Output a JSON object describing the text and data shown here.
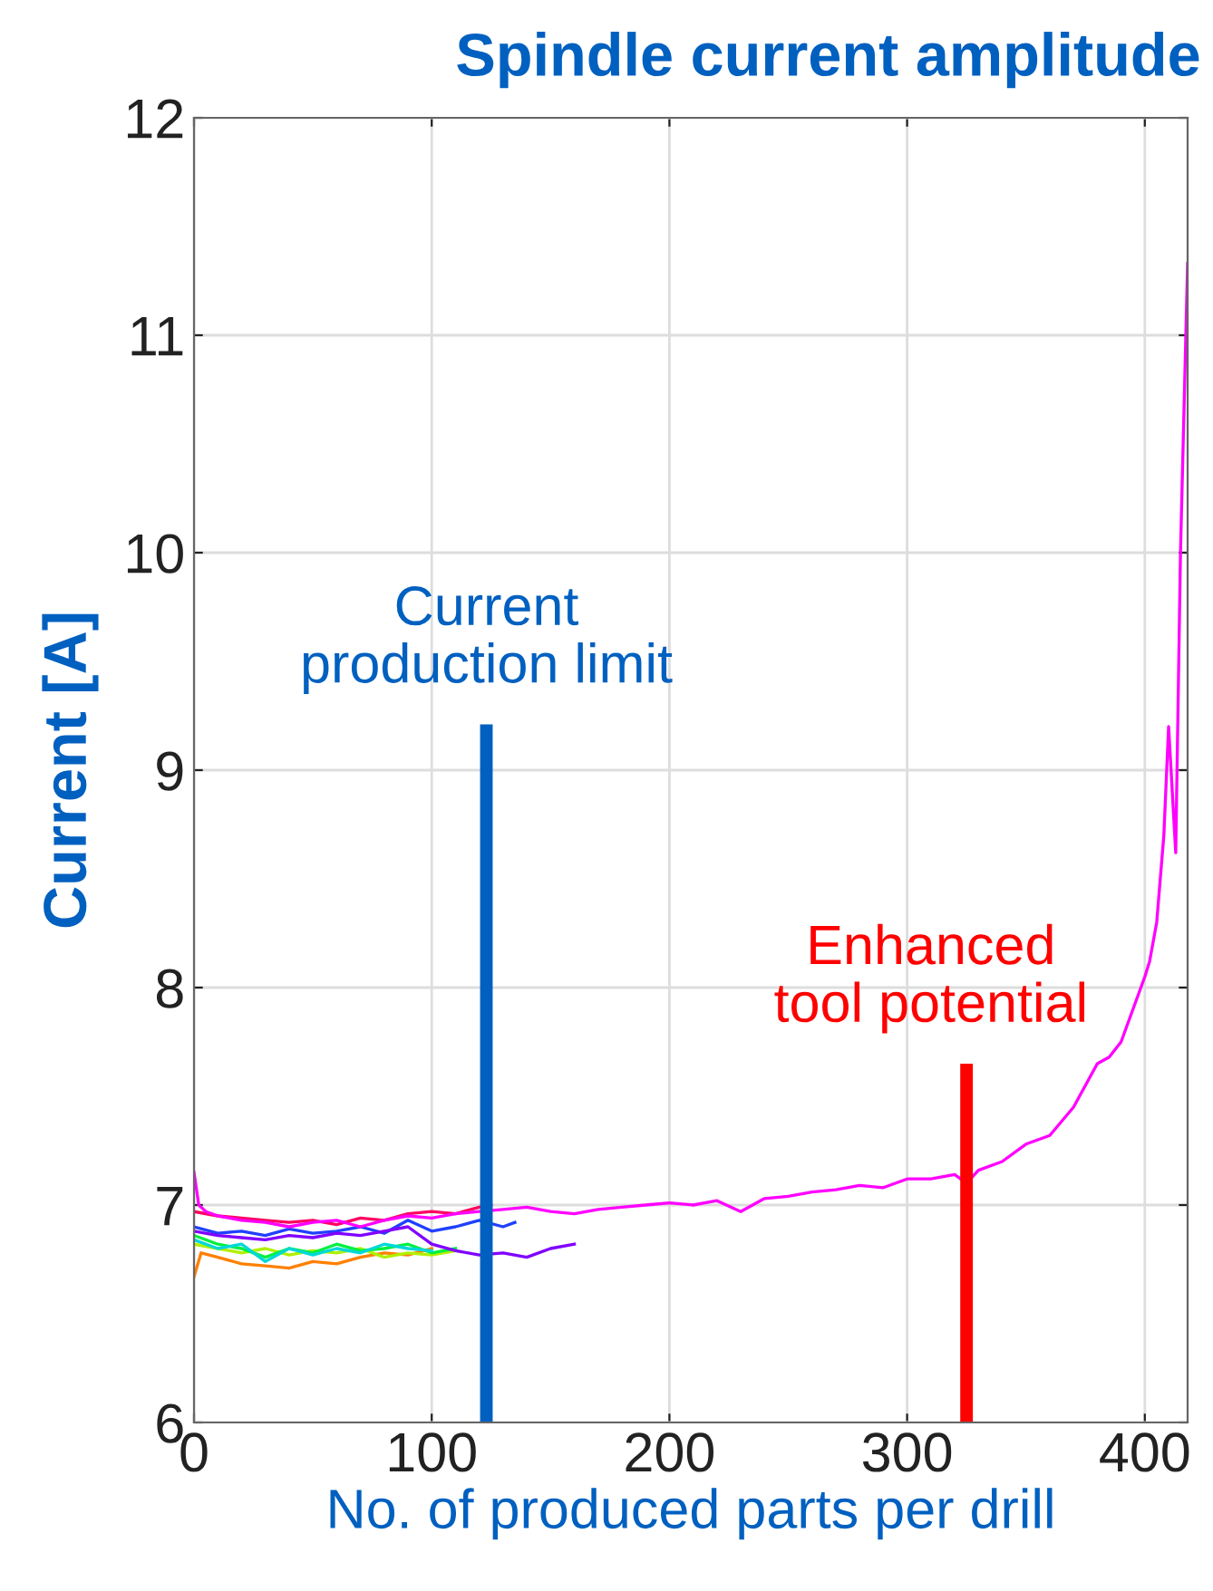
{
  "chart_data": {
    "type": "line",
    "title": "Spindle current amplitude",
    "xlabel": "No. of produced parts per drill",
    "ylabel": "Current [A]",
    "xlim": [
      0,
      418
    ],
    "ylim": [
      6,
      12
    ],
    "xticks": [
      0,
      100,
      200,
      300,
      400
    ],
    "yticks": [
      6,
      7,
      8,
      9,
      10,
      11,
      12
    ],
    "grid": true,
    "series": [
      {
        "color": "#ff8000",
        "x": [
          0,
          3,
          10,
          20,
          30,
          40,
          50,
          60,
          70,
          80,
          90,
          100
        ],
        "values": [
          6.67,
          6.78,
          6.76,
          6.73,
          6.72,
          6.71,
          6.74,
          6.73,
          6.76,
          6.78,
          6.77,
          6.8
        ]
      },
      {
        "color": "#b0f000",
        "x": [
          0,
          10,
          20,
          30,
          40,
          50,
          60,
          70,
          80,
          90,
          100,
          110
        ],
        "values": [
          6.82,
          6.8,
          6.78,
          6.8,
          6.77,
          6.79,
          6.78,
          6.8,
          6.76,
          6.78,
          6.77,
          6.79
        ]
      },
      {
        "color": "#00f040",
        "x": [
          0,
          10,
          20,
          30,
          40,
          50,
          60,
          70,
          80,
          90,
          100,
          110
        ],
        "values": [
          6.86,
          6.82,
          6.8,
          6.76,
          6.8,
          6.78,
          6.82,
          6.79,
          6.8,
          6.82,
          6.78,
          6.8
        ]
      },
      {
        "color": "#00d8d8",
        "x": [
          0,
          10,
          20,
          30,
          40,
          50,
          60,
          70,
          80,
          90,
          100
        ],
        "values": [
          6.84,
          6.8,
          6.82,
          6.74,
          6.8,
          6.77,
          6.8,
          6.78,
          6.82,
          6.8,
          6.79
        ]
      },
      {
        "color": "#2040ff",
        "x": [
          0,
          10,
          20,
          30,
          40,
          50,
          60,
          70,
          80,
          90,
          100,
          110,
          120,
          130,
          135
        ],
        "values": [
          6.9,
          6.87,
          6.88,
          6.86,
          6.89,
          6.87,
          6.88,
          6.9,
          6.87,
          6.93,
          6.88,
          6.9,
          6.93,
          6.9,
          6.92
        ]
      },
      {
        "color": "#8000ff",
        "x": [
          0,
          10,
          20,
          30,
          40,
          50,
          60,
          70,
          80,
          90,
          100,
          110,
          120,
          130,
          140,
          150,
          160
        ],
        "values": [
          6.88,
          6.86,
          6.85,
          6.84,
          6.86,
          6.85,
          6.87,
          6.86,
          6.88,
          6.9,
          6.82,
          6.79,
          6.77,
          6.78,
          6.76,
          6.8,
          6.82
        ]
      },
      {
        "color": "#ff0060",
        "x": [
          0,
          10,
          20,
          30,
          40,
          50,
          60,
          70,
          80,
          90,
          100,
          110,
          120,
          125
        ],
        "values": [
          6.97,
          6.95,
          6.94,
          6.93,
          6.92,
          6.93,
          6.91,
          6.94,
          6.93,
          6.96,
          6.97,
          6.96,
          6.99,
          7.0
        ]
      },
      {
        "color": "#ff00ff",
        "x": [
          0,
          2,
          5,
          10,
          20,
          30,
          40,
          50,
          60,
          70,
          80,
          90,
          100,
          110,
          120,
          130,
          140,
          150,
          160,
          170,
          180,
          190,
          200,
          210,
          220,
          230,
          240,
          250,
          260,
          270,
          280,
          290,
          300,
          310,
          320,
          325,
          330,
          340,
          350,
          360,
          370,
          375,
          380,
          385,
          390,
          395,
          400,
          402,
          405,
          408,
          410,
          413,
          415,
          418
        ],
        "values": [
          7.15,
          7.0,
          6.97,
          6.95,
          6.93,
          6.92,
          6.9,
          6.92,
          6.93,
          6.9,
          6.93,
          6.95,
          6.94,
          6.96,
          6.97,
          6.98,
          6.99,
          6.97,
          6.96,
          6.98,
          6.99,
          7.0,
          7.01,
          7.0,
          7.02,
          6.97,
          7.03,
          7.04,
          7.06,
          7.07,
          7.09,
          7.08,
          7.12,
          7.12,
          7.14,
          7.1,
          7.16,
          7.2,
          7.28,
          7.32,
          7.45,
          7.55,
          7.65,
          7.68,
          7.75,
          7.9,
          8.05,
          8.12,
          8.3,
          8.7,
          9.2,
          8.62,
          10.0,
          11.33
        ]
      }
    ],
    "ref_lines": [
      {
        "axis": "x",
        "value": 123,
        "label": "Current\nproduction limit",
        "color": "#0060c0"
      },
      {
        "axis": "x",
        "value": 325,
        "label": "Enhanced\ntool potential",
        "color": "#ff0000"
      }
    ]
  }
}
